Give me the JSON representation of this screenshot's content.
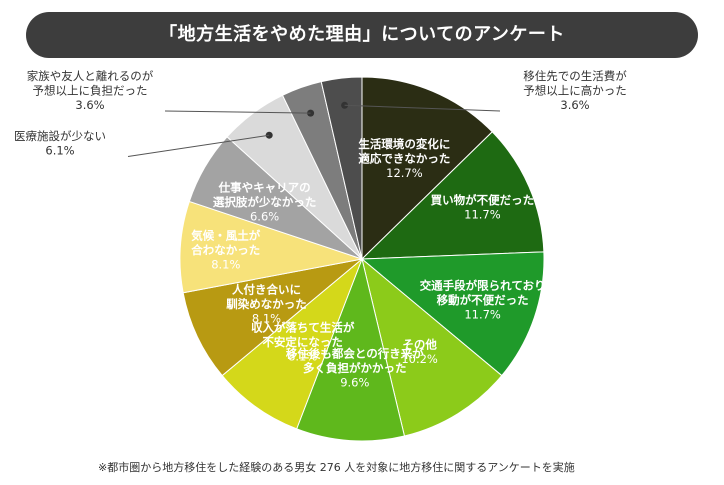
{
  "title": "「地方生活をやめた理由」についてのアンケート",
  "footnote": "※都市圏から地方移住をした経験のある男女 276 人を対象に地方移住に関するアンケートを実施",
  "chart_data": {
    "type": "pie",
    "title": "「地方生活をやめた理由」についてのアンケート",
    "unit": "%",
    "slices": [
      {
        "lines": [
          "生活環境の変化に",
          "適応できなかった"
        ],
        "value": 12.7,
        "value_label": "12.7%",
        "color": "#2b2d14",
        "text_color": "#ffffff",
        "placement": "inside"
      },
      {
        "lines": [
          "買い物が不便だった"
        ],
        "value": 11.7,
        "value_label": "11.7%",
        "color": "#1e6a12",
        "text_color": "#ffffff",
        "placement": "inside"
      },
      {
        "lines": [
          "交通手段が限られており",
          "移動が不便だった"
        ],
        "value": 11.7,
        "value_label": "11.7%",
        "color": "#1f9a2a",
        "text_color": "#ffffff",
        "placement": "inside"
      },
      {
        "lines": [
          "その他"
        ],
        "value": 10.2,
        "value_label": "10.2%",
        "color": "#8ccb1a",
        "text_color": "#ffffff",
        "placement": "inside"
      },
      {
        "lines": [
          "移住後も都会との行き来が",
          "多く負担がかかった"
        ],
        "value": 9.6,
        "value_label": "9.6%",
        "color": "#5fb81c",
        "text_color": "#ffffff",
        "placement": "inside"
      },
      {
        "lines": [
          "収入が落ちて生活が",
          "不安定になった"
        ],
        "value": 8.1,
        "value_label": "8.1%",
        "color": "#d4d81a",
        "text_color": "#ffffff",
        "placement": "inside"
      },
      {
        "lines": [
          "人付き合いに",
          "馴染めなかった"
        ],
        "value": 8.1,
        "value_label": "8.1%",
        "color": "#b89a12",
        "text_color": "#ffffff",
        "placement": "inside"
      },
      {
        "lines": [
          "気候・風土が",
          "合わなかった"
        ],
        "value": 8.1,
        "value_label": "8.1%",
        "color": "#f7e27a",
        "text_color": "#ffffff",
        "placement": "inside"
      },
      {
        "lines": [
          "仕事やキャリアの",
          "選択肢が少なかった"
        ],
        "value": 6.6,
        "value_label": "6.6%",
        "color": "#a3a3a3",
        "text_color": "#ffffff",
        "placement": "inside"
      },
      {
        "lines": [
          "医療施設が少ない"
        ],
        "value": 6.1,
        "value_label": "6.1%",
        "color": "#dadada",
        "text_color": "#333333",
        "placement": "outside",
        "label_side": "left"
      },
      {
        "lines": [
          "家族や友人と離れるのが",
          "予想以上に負担だった"
        ],
        "value": 3.6,
        "value_label": "3.6%",
        "color": "#7d7d7d",
        "text_color": "#333333",
        "placement": "outside",
        "label_side": "left"
      },
      {
        "lines": [
          "移住先での生活費が",
          "予想以上に高かった"
        ],
        "value": 3.6,
        "value_label": "3.6%",
        "color": "#4d4d4d",
        "text_color": "#333333",
        "placement": "outside",
        "label_side": "right"
      }
    ]
  }
}
